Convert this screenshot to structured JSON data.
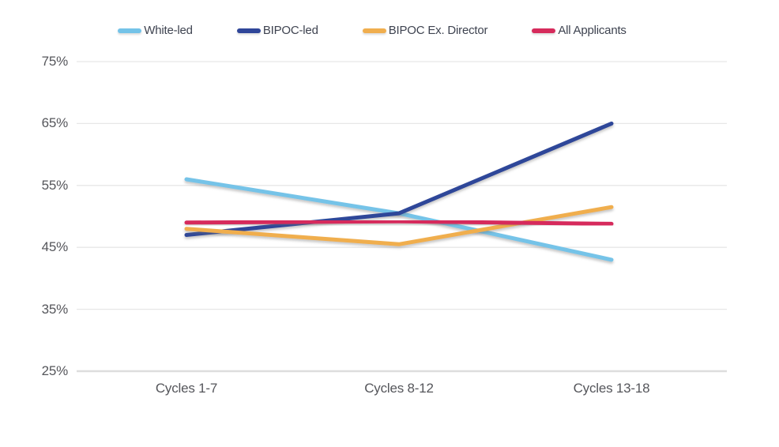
{
  "chart_data": {
    "type": "line",
    "title": "",
    "xlabel": "",
    "ylabel": "",
    "categories": [
      "Cycles 1-7",
      "Cycles 8-12",
      "Cycles 13-18"
    ],
    "series": [
      {
        "name": "White-led",
        "color": "#74C3E8",
        "values": [
          56,
          50.5,
          43
        ]
      },
      {
        "name": "BIPOC-led",
        "color": "#2F4699",
        "values": [
          47,
          50.5,
          65
        ]
      },
      {
        "name": "BIPOC Ex. Director",
        "color": "#F0AE4E",
        "values": [
          48,
          45.5,
          51.5
        ]
      },
      {
        "name": "All Applicants",
        "color": "#D62B5C",
        "values": [
          49,
          49.2,
          48.8
        ]
      }
    ],
    "ylim": [
      25,
      75
    ],
    "yticks": [
      {
        "label": "75%",
        "value": 75
      },
      {
        "label": "65%",
        "value": 65
      },
      {
        "label": "55%",
        "value": 55
      },
      {
        "label": "45%",
        "value": 45
      },
      {
        "label": "35%",
        "value": 35
      },
      {
        "label": "25%",
        "value": 25
      }
    ],
    "grid": true,
    "legend_position": "top"
  },
  "colors": {
    "background": "#ffffff",
    "gridline": "#e7e7e7",
    "axis_line": "#dddddd",
    "tick_text": "#55565b",
    "legend_text": "#3e4350"
  }
}
